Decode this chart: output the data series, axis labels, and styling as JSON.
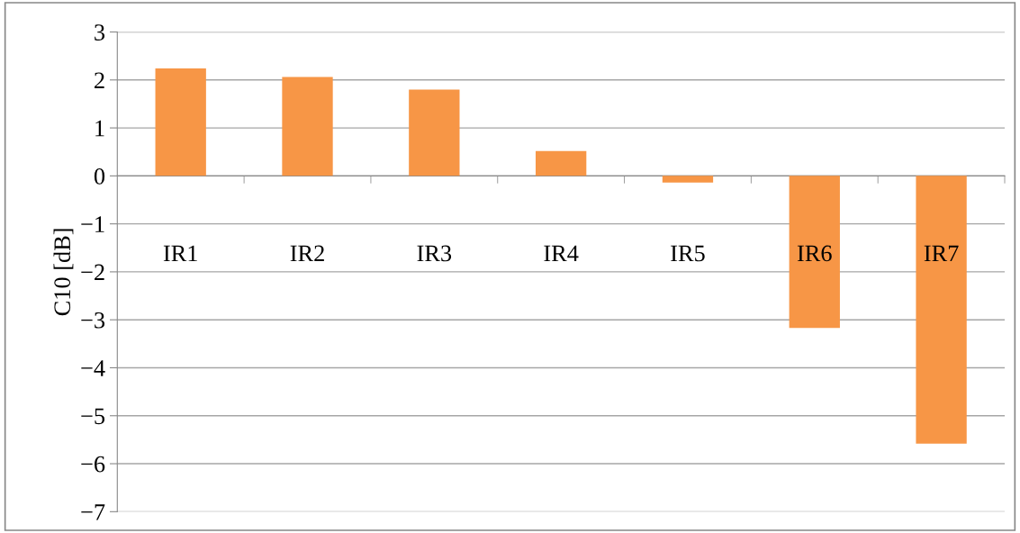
{
  "chart_data": {
    "type": "bar",
    "ylabel": "C10 [dB]",
    "categories": [
      "IR1",
      "IR2",
      "IR3",
      "IR4",
      "IR5",
      "IR6",
      "IR7"
    ],
    "values": [
      2.24,
      2.06,
      1.8,
      0.52,
      -0.14,
      -3.17,
      -5.58
    ],
    "color": "#f79646",
    "ylim": [
      -7,
      3
    ],
    "yticks": [
      -7,
      -6,
      -5,
      -4,
      -3,
      -2,
      -1,
      0,
      1,
      2,
      3
    ],
    "grid": "y",
    "legend": false
  }
}
